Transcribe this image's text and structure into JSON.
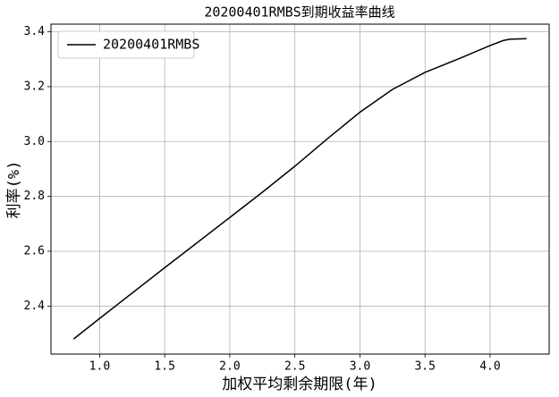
{
  "chart_data": {
    "type": "line",
    "title": "20200401RMBS到期收益率曲线",
    "xlabel": "加权平均剩余期限(年)",
    "ylabel": "利率(%)",
    "x": [
      0.8,
      1.0,
      1.5,
      2.0,
      2.25,
      2.5,
      2.75,
      3.0,
      3.25,
      3.5,
      3.75,
      4.0,
      4.1,
      4.15,
      4.28
    ],
    "series": [
      {
        "name": "20200401RMBS",
        "color": "#000000",
        "values": [
          2.28,
          2.355,
          2.54,
          2.723,
          2.815,
          2.91,
          3.01,
          3.107,
          3.19,
          3.252,
          3.3,
          3.35,
          3.368,
          3.373,
          3.375
        ]
      }
    ],
    "xlim": [
      0.626,
      4.454
    ],
    "xticks": [
      {
        "value": 1,
        "label": "1.0"
      },
      1.5,
      {
        "value": 2,
        "label": "2.0"
      },
      2.5,
      {
        "value": 3,
        "label": "3.0"
      },
      3.5,
      {
        "value": 4,
        "label": "4.0"
      }
    ],
    "ylim": [
      2.225,
      3.428
    ],
    "yticks": [
      2.4,
      2.6,
      2.8,
      {
        "value": 3,
        "label": "3.0"
      },
      3.2,
      3.4
    ],
    "grid": true,
    "legend": "upper left"
  }
}
